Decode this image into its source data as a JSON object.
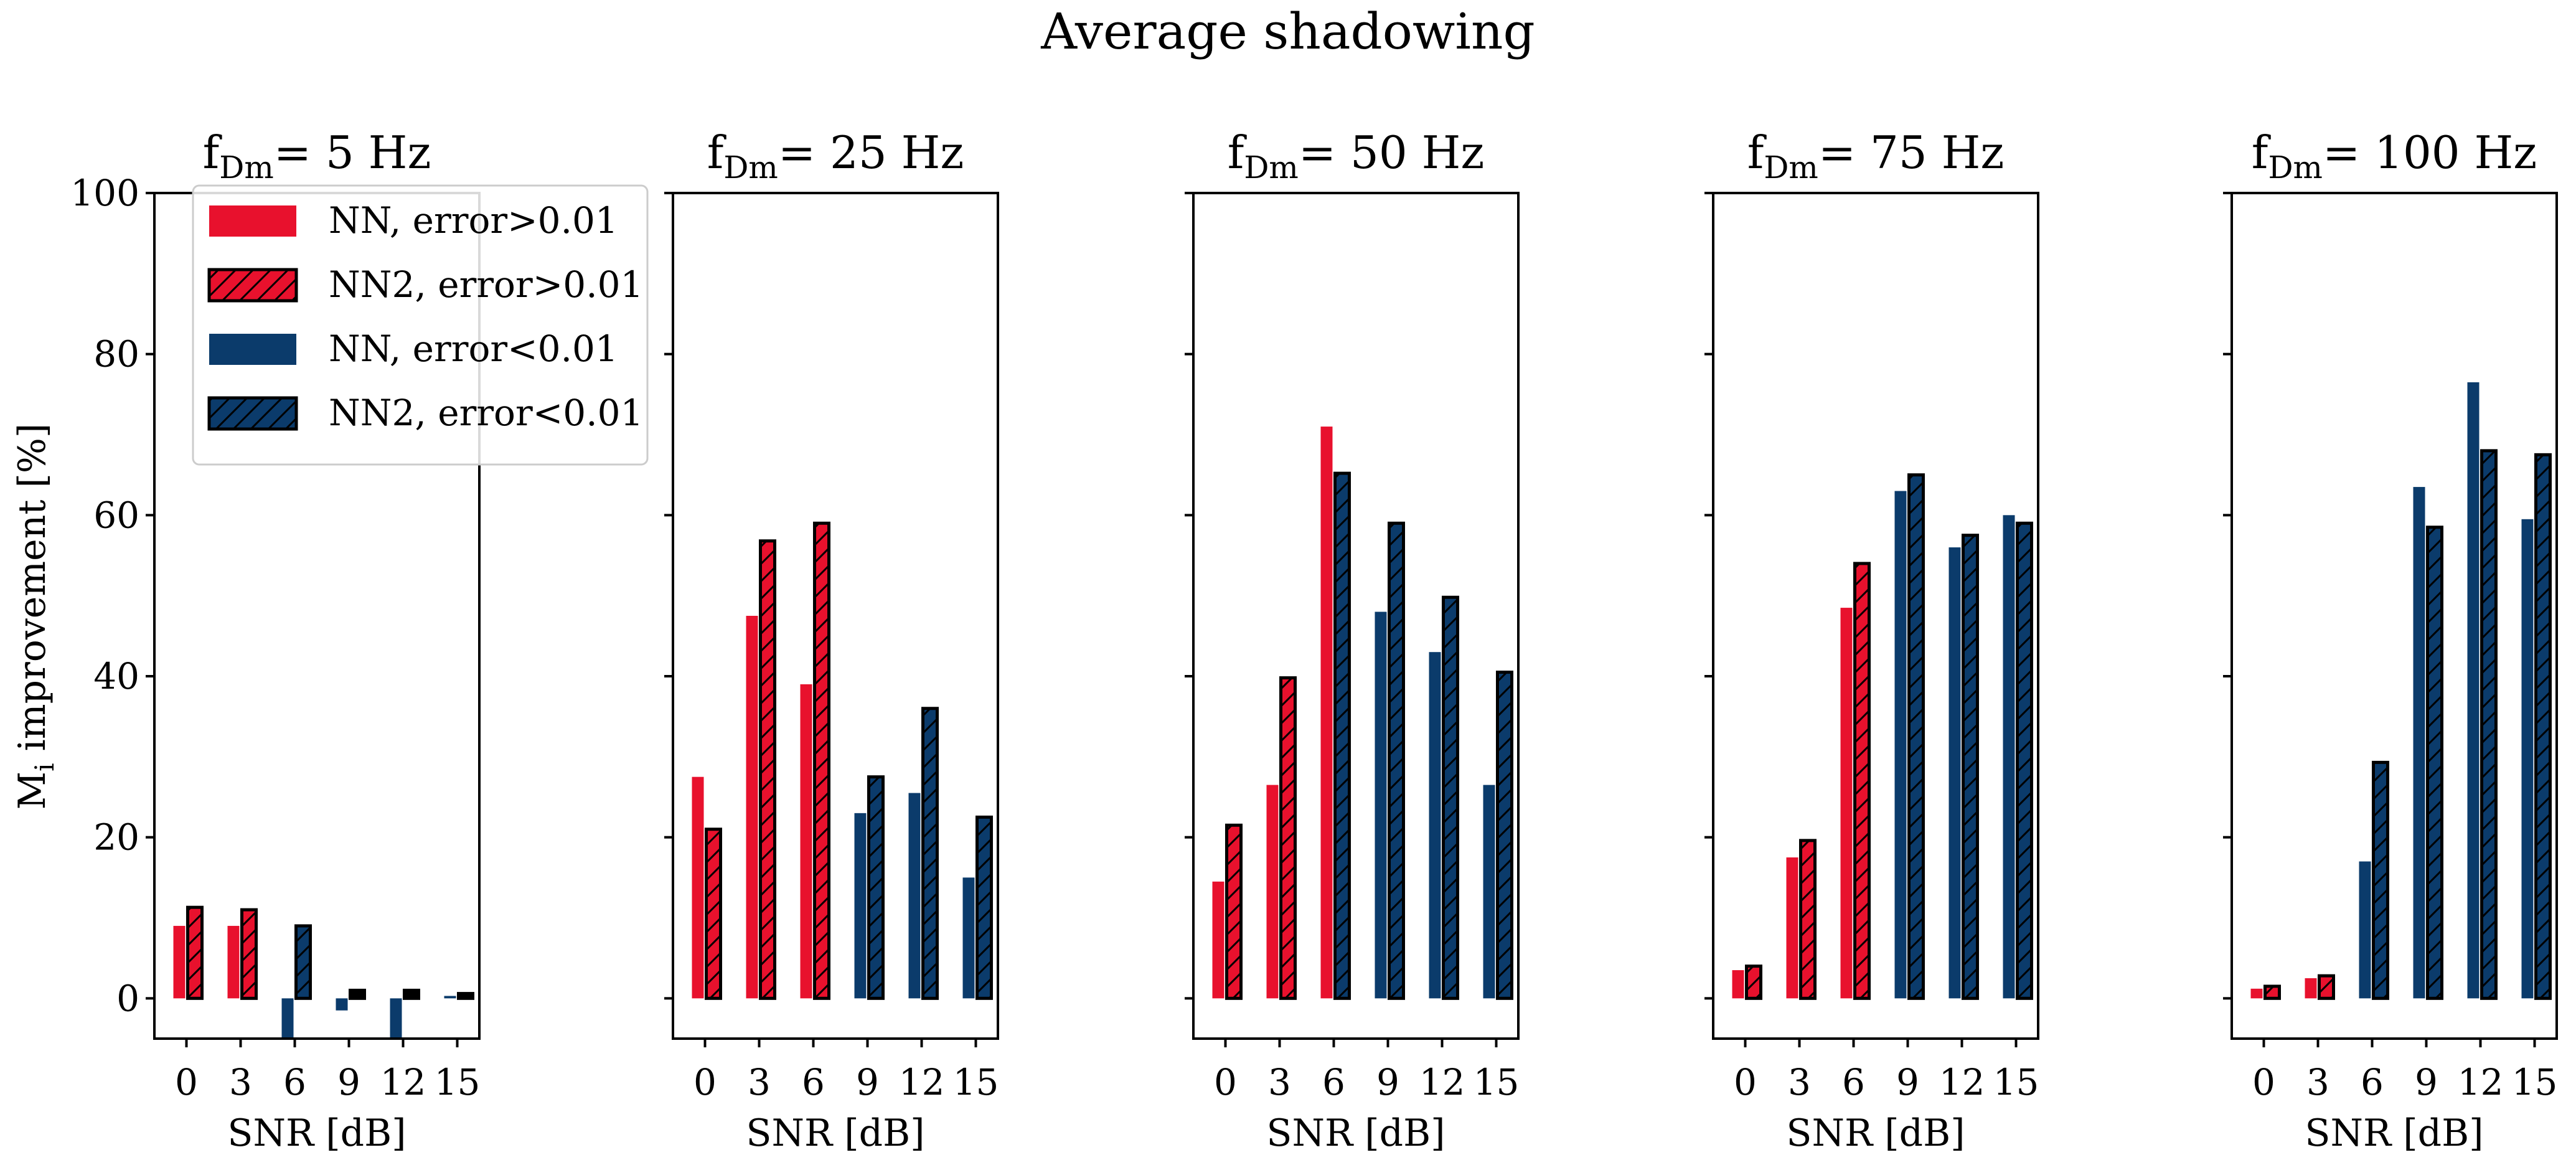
{
  "figure_title": "Average shadowing",
  "chart_data": {
    "type": "bar",
    "title": "Average shadowing",
    "ylabel_main": "M",
    "ylabel_sub": "i",
    "ylabel_rest": " improvement [%]",
    "xlabel": "SNR [dB]",
    "ylim": [
      -5,
      100
    ],
    "yticks": [
      0,
      20,
      40,
      60,
      80,
      100
    ],
    "categories": [
      "0",
      "3",
      "6",
      "9",
      "12",
      "15"
    ],
    "threshold_switch_note": "red = error>0.01 regime, blue = error<0.01 regime",
    "colors": {
      "red": "#e8112d",
      "blue": "#0b3b6b",
      "hatch": "#000000",
      "edge": "#000000"
    },
    "legend": [
      {
        "label": "NN, error>0.01",
        "color": "red",
        "hatched": false
      },
      {
        "label": "NN2, error>0.01",
        "color": "red",
        "hatched": true
      },
      {
        "label": "NN, error<0.01",
        "color": "blue",
        "hatched": false
      },
      {
        "label": "NN2, error<0.01",
        "color": "blue",
        "hatched": true
      }
    ],
    "panels": [
      {
        "title_main": "f",
        "title_sub": "Dm",
        "title_rest": "= 5 Hz",
        "nn": [
          9.0,
          9.0,
          -5.0,
          -1.5,
          -5.0,
          0.3
        ],
        "nn2": [
          11.3,
          11.0,
          9.0,
          1.0,
          1.0,
          0.6
        ],
        "regime": [
          "red",
          "red",
          "blue",
          "blue",
          "blue",
          "blue"
        ],
        "nn2_regime": [
          "red",
          "red",
          "blue",
          "black",
          "black",
          "black"
        ]
      },
      {
        "title_main": "f",
        "title_sub": "Dm",
        "title_rest": "= 25 Hz",
        "nn": [
          27.5,
          47.5,
          39.0,
          23.0,
          25.5,
          15.0
        ],
        "nn2": [
          21.0,
          56.8,
          59.0,
          27.5,
          36.0,
          22.5
        ],
        "regime": [
          "red",
          "red",
          "red",
          "blue",
          "blue",
          "blue"
        ],
        "nn2_regime": [
          "red",
          "red",
          "red",
          "blue",
          "blue",
          "blue"
        ]
      },
      {
        "title_main": "f",
        "title_sub": "Dm",
        "title_rest": "= 50 Hz",
        "nn": [
          14.5,
          26.5,
          71.0,
          48.0,
          43.0,
          26.5
        ],
        "nn2": [
          21.5,
          39.8,
          65.2,
          59.0,
          49.8,
          40.5
        ],
        "regime": [
          "red",
          "red",
          "red",
          "blue",
          "blue",
          "blue"
        ],
        "nn2_regime": [
          "red",
          "red",
          "blue",
          "blue",
          "blue",
          "blue"
        ]
      },
      {
        "title_main": "f",
        "title_sub": "Dm",
        "title_rest": "= 75 Hz",
        "nn": [
          3.5,
          17.5,
          48.5,
          63.0,
          56.0,
          60.0
        ],
        "nn2": [
          4.0,
          19.6,
          54.0,
          65.0,
          57.5,
          59.0
        ],
        "regime": [
          "red",
          "red",
          "red",
          "blue",
          "blue",
          "blue"
        ],
        "nn2_regime": [
          "red",
          "red",
          "red",
          "blue",
          "blue",
          "blue"
        ]
      },
      {
        "title_main": "f",
        "title_sub": "Dm",
        "title_rest": "= 100 Hz",
        "nn": [
          1.2,
          2.5,
          17.0,
          63.5,
          76.5,
          59.5
        ],
        "nn2": [
          1.5,
          2.8,
          29.3,
          58.5,
          68.0,
          67.5
        ],
        "regime": [
          "red",
          "red",
          "blue",
          "blue",
          "blue",
          "blue"
        ],
        "nn2_regime": [
          "red",
          "red",
          "blue",
          "blue",
          "blue",
          "blue"
        ]
      }
    ]
  }
}
